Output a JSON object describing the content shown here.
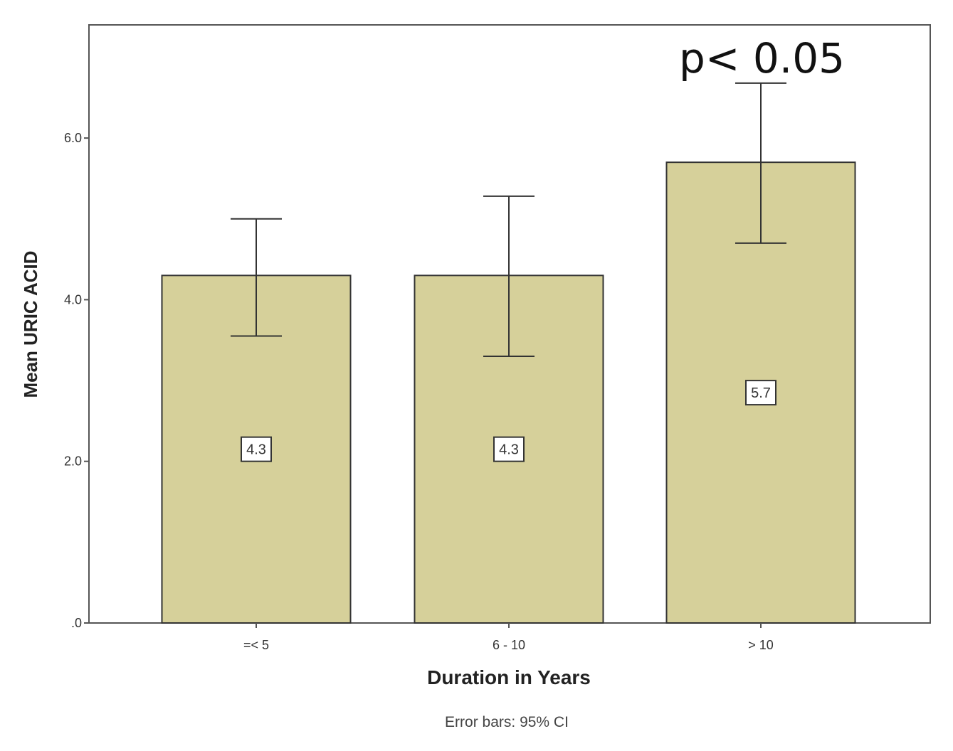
{
  "chart_data": {
    "type": "bar",
    "categories": [
      "=< 5",
      "6 - 10",
      "> 10"
    ],
    "values": [
      4.3,
      4.3,
      5.7
    ],
    "value_labels": [
      "4.3",
      "4.3",
      "5.7"
    ],
    "error_bars": {
      "lower": [
        3.55,
        3.3,
        4.7
      ],
      "upper": [
        5.0,
        5.28,
        6.68
      ]
    },
    "xlabel": "Duration in Years",
    "ylabel": "Mean URIC ACID",
    "ylim": [
      0,
      7.4
    ],
    "yticks": [
      0,
      2,
      4,
      6
    ],
    "ytick_labels": [
      ".0",
      "2.0",
      "4.0",
      "6.0"
    ],
    "footnote": "Error bars: 95% CI",
    "annotation": "p< 0.05",
    "bar_color": "#d6d09a",
    "grid": false,
    "legend": "none"
  }
}
